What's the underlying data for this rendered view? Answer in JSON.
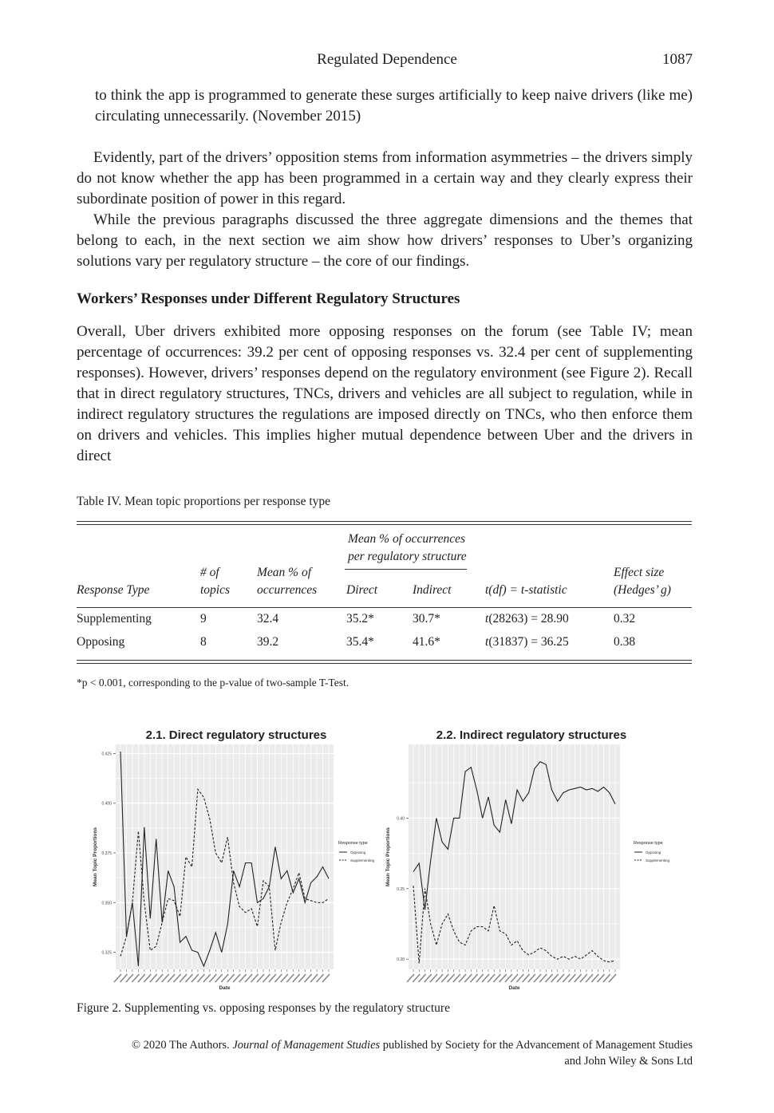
{
  "header": {
    "title": "Regulated Dependence",
    "page_number": "1087"
  },
  "quote_continuation": "to think the app is programmed to generate these surges artificially to keep naive drivers (like me) circulating unnecessarily. (November 2015)",
  "paragraphs": [
    "Evidently, part of the drivers’ opposition stems from information asymmetries – the drivers simply do not know whether the app has been programmed in a certain way and they clearly express their subordinate position of power in this regard.",
    "While the previous paragraphs discussed the three aggregate dimensions and the themes that belong to each, in the next section we aim show how drivers’ responses to Uber’s organizing solutions vary per regulatory structure – the core of our findings."
  ],
  "section_heading": "Workers’ Responses under Different Regulatory Structures",
  "section_paragraph": "Overall, Uber drivers exhibited more opposing responses on the forum (see Table IV; mean percentage of occurrences: 39.2 per cent of opposing responses vs. 32.4 per cent of supplementing responses). However, drivers’ responses depend on the regulatory environment (see Figure 2). Recall that in direct regulatory structures, TNCs, drivers and vehicles are all subject to regulation, while in indirect regulatory structures the regulations are imposed directly on TNCs, who then enforce them on drivers and vehicles. This implies higher mutual dependence between Uber and the drivers in direct",
  "table": {
    "caption": "Table IV. Mean topic proportions per response type",
    "group_header_line1": "Mean % of occurrences",
    "group_header_line2": "per regulatory structure",
    "columns": {
      "response_type": "Response Type",
      "topics_line1": "# of",
      "topics_line2": "topics",
      "mean_line1": "Mean % of",
      "mean_line2": "occurrences",
      "direct": "Direct",
      "indirect": "Indirect",
      "tstat": "t(df) = t-statistic",
      "effect_line1": "Effect size",
      "effect_line2": "(Hedges’ g)"
    },
    "rows": [
      {
        "type": "Supplementing",
        "topics": "9",
        "mean": "32.4",
        "direct": "35.2*",
        "indirect": "30.7*",
        "t_letter": "t",
        "t_rest": "(28263) = 28.90",
        "effect": "0.32"
      },
      {
        "type": "Opposing",
        "topics": "8",
        "mean": "39.2",
        "direct": "35.4*",
        "indirect": "41.6*",
        "t_letter": "t",
        "t_rest": "(31837) = 36.25",
        "effect": "0.38"
      }
    ],
    "footnote": "*p < 0.001, corresponding to the p-value of two-sample T-Test."
  },
  "figure": {
    "caption": "Figure 2. Supplementing vs. opposing responses by the regulatory structure"
  },
  "chart_data": [
    {
      "type": "line",
      "title": "2.1. Direct regulatory structures",
      "xlabel": "Date",
      "ylabel": "Mean Topic Proportions",
      "ylim": [
        0.318,
        0.428
      ],
      "yticks": [
        "0.325",
        "0.350",
        "0.375",
        "0.400",
        "0.425"
      ],
      "ytick_values": [
        0.325,
        0.35,
        0.375,
        0.4,
        0.425
      ],
      "legend_title": "Response type",
      "legend_position": "right",
      "grid": true,
      "series": [
        {
          "name": "Opposing",
          "style": "solid",
          "values": [
            0.426,
            0.333,
            0.35,
            0.318,
            0.388,
            0.342,
            0.382,
            0.34,
            0.366,
            0.358,
            0.33,
            0.333,
            0.326,
            0.325,
            0.318,
            0.326,
            0.335,
            0.325,
            0.339,
            0.366,
            0.358,
            0.37,
            0.37,
            0.35,
            0.352,
            0.358,
            0.378,
            0.362,
            0.366,
            0.355,
            0.362,
            0.35,
            0.36,
            0.363,
            0.368,
            0.362
          ]
        },
        {
          "name": "Supplementing",
          "style": "dashed",
          "values": [
            0.323,
            0.333,
            0.35,
            0.386,
            0.35,
            0.326,
            0.328,
            0.34,
            0.352,
            0.351,
            0.343,
            0.373,
            0.368,
            0.407,
            0.403,
            0.392,
            0.375,
            0.37,
            0.383,
            0.36,
            0.348,
            0.345,
            0.347,
            0.338,
            0.361,
            0.358,
            0.326,
            0.34,
            0.35,
            0.357,
            0.365,
            0.352,
            0.351,
            0.35,
            0.35,
            0.352
          ]
        }
      ]
    },
    {
      "type": "line",
      "title": "2.2. Indirect regulatory structures",
      "xlabel": "Date",
      "ylabel": "Mean Topic Proportions",
      "ylim": [
        0.295,
        0.45
      ],
      "yticks": [
        "0.30",
        "0.35",
        "0.40"
      ],
      "ytick_values": [
        0.3,
        0.35,
        0.4
      ],
      "legend_title": "Response type",
      "legend_position": "right",
      "grid": true,
      "series": [
        {
          "name": "Opposing",
          "style": "solid",
          "values": [
            0.362,
            0.368,
            0.335,
            0.37,
            0.4,
            0.383,
            0.378,
            0.4,
            0.4,
            0.433,
            0.436,
            0.42,
            0.4,
            0.415,
            0.395,
            0.39,
            0.413,
            0.396,
            0.42,
            0.412,
            0.418,
            0.435,
            0.44,
            0.438,
            0.42,
            0.412,
            0.418,
            0.42,
            0.421,
            0.422,
            0.42,
            0.421,
            0.419,
            0.422,
            0.418,
            0.41
          ]
        },
        {
          "name": "Supplementing",
          "style": "dashed",
          "values": [
            0.352,
            0.297,
            0.35,
            0.325,
            0.31,
            0.325,
            0.332,
            0.32,
            0.312,
            0.31,
            0.32,
            0.323,
            0.323,
            0.32,
            0.338,
            0.32,
            0.318,
            0.31,
            0.313,
            0.306,
            0.303,
            0.305,
            0.308,
            0.306,
            0.302,
            0.3,
            0.302,
            0.3,
            0.302,
            0.3,
            0.303,
            0.306,
            0.302,
            0.299,
            0.298,
            0.299
          ]
        }
      ]
    }
  ],
  "copyright": {
    "prefix": "© 2020 The Authors.",
    "journal": "Journal of Management Studies",
    "suffix": "published by Society for the Advancement of Management Studies",
    "line2": "and John Wiley & Sons Ltd"
  }
}
